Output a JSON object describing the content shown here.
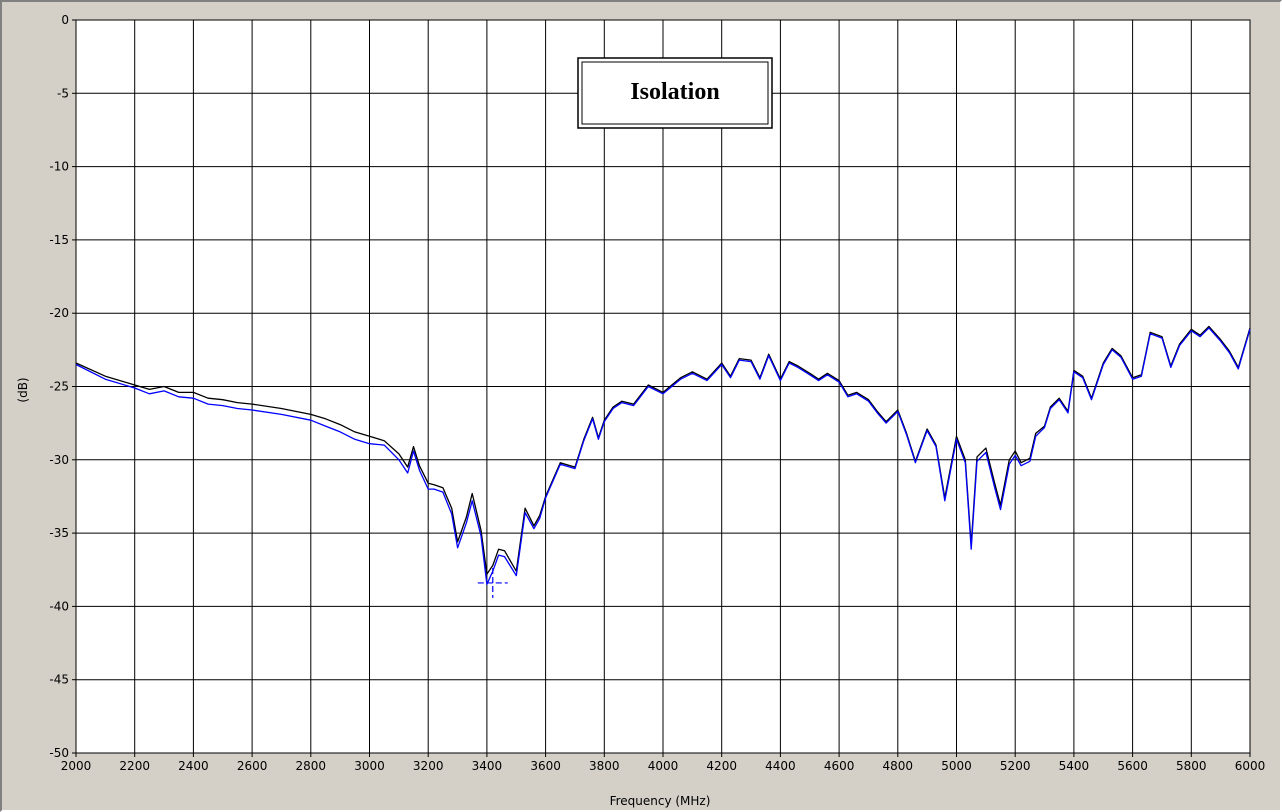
{
  "chart_data": {
    "type": "line",
    "title": "Isolation",
    "xlabel": "Frequency (MHz)",
    "ylabel": "(dB)",
    "xlim": [
      2000,
      6000
    ],
    "ylim": [
      -50,
      0
    ],
    "x_ticks": [
      2000,
      2200,
      2400,
      2600,
      2800,
      3000,
      3200,
      3400,
      3600,
      3800,
      4000,
      4200,
      4400,
      4600,
      4800,
      5000,
      5200,
      5400,
      5600,
      5800,
      6000
    ],
    "y_ticks": [
      0,
      -5,
      -10,
      -15,
      -20,
      -25,
      -30,
      -35,
      -40,
      -45,
      -50
    ],
    "grid": true,
    "colors": {
      "plot_bg": "#ffffff",
      "panel_bg": "#d4d0c8",
      "grid": "#000000",
      "series_1": "#000000",
      "series_2": "#0000ff"
    },
    "series": [
      {
        "color": "#000000",
        "x": [
          2000,
          2100,
          2200,
          2250,
          2300,
          2350,
          2400,
          2450,
          2500,
          2550,
          2600,
          2700,
          2800,
          2850,
          2900,
          2950,
          3000,
          3050,
          3100,
          3130,
          3150,
          3170,
          3200,
          3220,
          3250,
          3280,
          3300,
          3330,
          3350,
          3380,
          3400,
          3420,
          3440,
          3460,
          3500,
          3530,
          3560,
          3580,
          3600,
          3650,
          3700,
          3730,
          3760,
          3780,
          3800,
          3830,
          3860,
          3900,
          3950,
          4000,
          4030,
          4060,
          4100,
          4150,
          4200,
          4230,
          4260,
          4300,
          4330,
          4360,
          4400,
          4430,
          4460,
          4500,
          4530,
          4560,
          4600,
          4630,
          4660,
          4700,
          4730,
          4760,
          4800,
          4830,
          4860,
          4900,
          4930,
          4960,
          5000,
          5030,
          5050,
          5070,
          5100,
          5130,
          5150,
          5180,
          5200,
          5220,
          5250,
          5270,
          5300,
          5320,
          5350,
          5380,
          5400,
          5430,
          5460,
          5500,
          5530,
          5560,
          5600,
          5630,
          5660,
          5700,
          5730,
          5760,
          5800,
          5830,
          5860,
          5900,
          5930,
          5960,
          6000
        ],
        "y": [
          -23.4,
          -24.3,
          -24.9,
          -25.2,
          -25.0,
          -25.4,
          -25.4,
          -25.8,
          -25.9,
          -26.1,
          -26.2,
          -26.5,
          -26.9,
          -27.2,
          -27.6,
          -28.1,
          -28.4,
          -28.7,
          -29.6,
          -30.5,
          -29.1,
          -30.4,
          -31.6,
          -31.7,
          -31.9,
          -33.3,
          -35.6,
          -33.9,
          -32.3,
          -34.8,
          -37.8,
          -37.2,
          -36.1,
          -36.2,
          -37.6,
          -33.3,
          -34.5,
          -33.8,
          -32.5,
          -30.2,
          -30.5,
          -28.6,
          -27.1,
          -28.5,
          -27.3,
          -26.4,
          -26.0,
          -26.2,
          -24.9,
          -25.4,
          -24.9,
          -24.4,
          -24.0,
          -24.5,
          -23.4,
          -24.3,
          -23.1,
          -23.2,
          -24.4,
          -22.8,
          -24.5,
          -23.3,
          -23.6,
          -24.1,
          -24.5,
          -24.1,
          -24.6,
          -25.6,
          -25.4,
          -25.9,
          -26.7,
          -27.4,
          -26.6,
          -28.2,
          -30.1,
          -27.9,
          -29.0,
          -32.6,
          -28.4,
          -30.0,
          -35.8,
          -29.8,
          -29.2,
          -31.6,
          -33.1,
          -30.0,
          -29.4,
          -30.2,
          -29.9,
          -28.2,
          -27.7,
          -26.4,
          -25.8,
          -26.7,
          -23.9,
          -24.3,
          -25.8,
          -23.4,
          -22.4,
          -22.9,
          -24.4,
          -24.2,
          -21.3,
          -21.6,
          -23.6,
          -22.1,
          -21.1,
          -21.5,
          -20.9,
          -21.8,
          -22.6,
          -23.7,
          -21.0
        ]
      },
      {
        "color": "#0000ff",
        "x": [
          2000,
          2100,
          2200,
          2250,
          2300,
          2350,
          2400,
          2450,
          2500,
          2550,
          2600,
          2700,
          2800,
          2850,
          2900,
          2950,
          3000,
          3050,
          3100,
          3130,
          3150,
          3170,
          3200,
          3220,
          3250,
          3280,
          3300,
          3330,
          3350,
          3380,
          3400,
          3420,
          3440,
          3460,
          3500,
          3530,
          3560,
          3580,
          3600,
          3650,
          3700,
          3730,
          3760,
          3780,
          3800,
          3830,
          3860,
          3900,
          3950,
          4000,
          4030,
          4060,
          4100,
          4150,
          4200,
          4230,
          4260,
          4300,
          4330,
          4360,
          4400,
          4430,
          4460,
          4500,
          4530,
          4560,
          4600,
          4630,
          4660,
          4700,
          4730,
          4760,
          4800,
          4830,
          4860,
          4900,
          4930,
          4960,
          5000,
          5030,
          5050,
          5070,
          5100,
          5130,
          5150,
          5180,
          5200,
          5220,
          5250,
          5270,
          5300,
          5320,
          5350,
          5380,
          5400,
          5430,
          5460,
          5500,
          5530,
          5560,
          5600,
          5630,
          5660,
          5700,
          5730,
          5760,
          5800,
          5830,
          5860,
          5900,
          5930,
          5960,
          6000
        ],
        "y": [
          -23.5,
          -24.5,
          -25.1,
          -25.5,
          -25.3,
          -25.7,
          -25.8,
          -26.2,
          -26.3,
          -26.5,
          -26.6,
          -26.9,
          -27.3,
          -27.7,
          -28.1,
          -28.6,
          -28.9,
          -29.0,
          -30.0,
          -30.9,
          -29.4,
          -30.7,
          -32.0,
          -32.0,
          -32.2,
          -33.7,
          -36.0,
          -34.3,
          -32.8,
          -35.2,
          -38.5,
          -37.6,
          -36.5,
          -36.6,
          -37.9,
          -33.6,
          -34.7,
          -34.0,
          -32.6,
          -30.3,
          -30.6,
          -28.7,
          -27.2,
          -28.6,
          -27.4,
          -26.5,
          -26.1,
          -26.3,
          -25.0,
          -25.5,
          -25.0,
          -24.5,
          -24.1,
          -24.6,
          -23.5,
          -24.4,
          -23.2,
          -23.3,
          -24.5,
          -22.9,
          -24.6,
          -23.4,
          -23.7,
          -24.2,
          -24.6,
          -24.2,
          -24.7,
          -25.7,
          -25.5,
          -26.0,
          -26.8,
          -27.5,
          -26.7,
          -28.3,
          -30.2,
          -28.0,
          -29.1,
          -32.8,
          -28.6,
          -30.2,
          -36.1,
          -30.1,
          -29.5,
          -31.9,
          -33.4,
          -30.3,
          -29.7,
          -30.4,
          -30.1,
          -28.4,
          -27.8,
          -26.5,
          -25.9,
          -26.8,
          -24.0,
          -24.4,
          -25.9,
          -23.5,
          -22.5,
          -23.0,
          -24.5,
          -24.3,
          -21.4,
          -21.7,
          -23.7,
          -22.2,
          -21.2,
          -21.6,
          -21.0,
          -21.9,
          -22.7,
          -23.8,
          -21.1
        ]
      }
    ],
    "marker": {
      "x": 3420,
      "y": -38.4
    }
  }
}
